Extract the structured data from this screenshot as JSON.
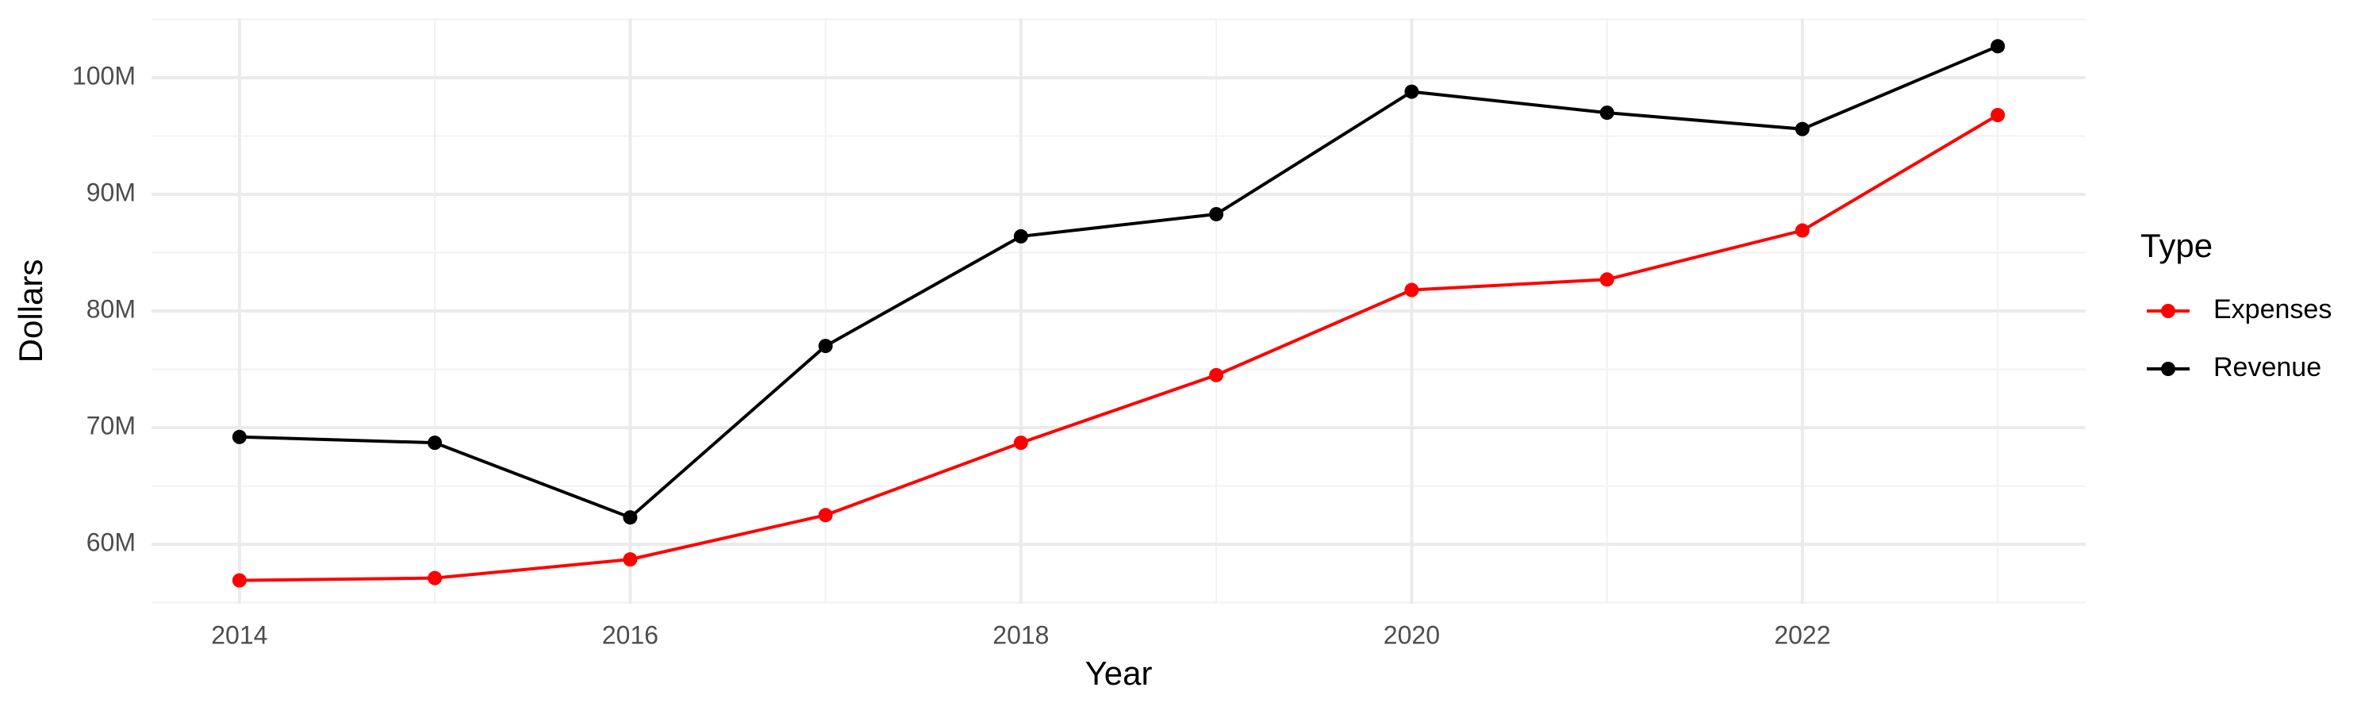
{
  "chart_data": {
    "type": "line",
    "x_label": "Year",
    "y_label": "Dollars",
    "legend_title": "Type",
    "x": [
      2014,
      2015,
      2016,
      2017,
      2018,
      2019,
      2020,
      2021,
      2022,
      2023
    ],
    "series": [
      {
        "name": "Expenses",
        "color": "#ff0000",
        "values": [
          56900000,
          57100000,
          58700000,
          62500000,
          68700000,
          74500000,
          81800000,
          82700000,
          86900000,
          96800000
        ]
      },
      {
        "name": "Revenue",
        "color": "#000000",
        "values": [
          69200000,
          68700000,
          62300000,
          77000000,
          86400000,
          88300000,
          98800000,
          97000000,
          95600000,
          102700000
        ]
      }
    ],
    "xlim": [
      2013.55,
      2023.45
    ],
    "xticks": [
      2014,
      2016,
      2018,
      2020,
      2022
    ],
    "ylim": [
      54900000,
      105100000
    ],
    "yticks": [
      {
        "value": 60000000,
        "label": "60M"
      },
      {
        "value": 70000000,
        "label": "70M"
      },
      {
        "value": 80000000,
        "label": "80M"
      },
      {
        "value": 90000000,
        "label": "90M"
      },
      {
        "value": 100000000,
        "label": "100M"
      }
    ],
    "grid": true,
    "legend_position": "right"
  }
}
